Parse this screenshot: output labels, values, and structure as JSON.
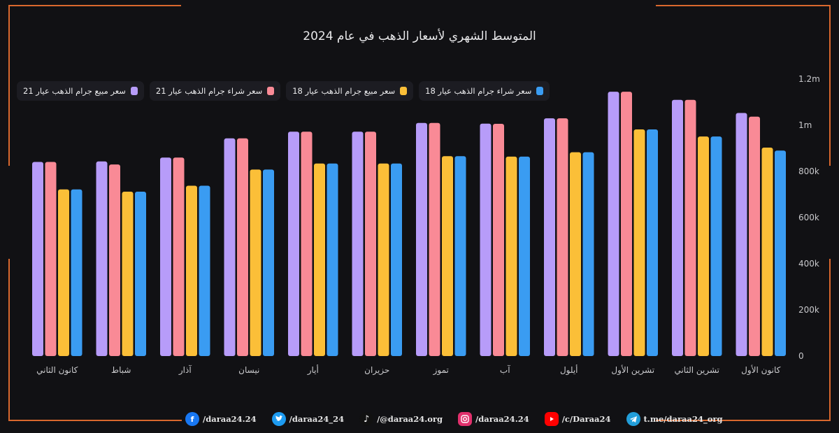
{
  "colors": {
    "series": [
      "#b79cf9",
      "#f98a96",
      "#fbbf38",
      "#3a9cf2"
    ],
    "frame": "#d9682e",
    "background": "#111114",
    "facebook": "#1877f2",
    "twitter": "#1d9bf0",
    "tiktok": "#111111",
    "instagram": "#e1306c",
    "youtube": "#ff0000",
    "telegram": "#229ed9"
  },
  "chart_data": {
    "type": "bar",
    "title": "المتوسط الشهري لأسعار الذهب في عام  2024",
    "categories": [
      "كانون الثاني",
      "شباط",
      "آذار",
      "نيسان",
      "أيار",
      "حزيران",
      "تموز",
      "آب",
      "أيلول",
      "تشرين الأول",
      "تشرين الثاني",
      "كانون الأول"
    ],
    "series": [
      {
        "name": "سعر مبيع جرام الذهب عيار 21",
        "values": [
          841000,
          843000,
          860000,
          943000,
          972000,
          972000,
          1010000,
          1007000,
          1030000,
          1145000,
          1110000,
          1053000
        ]
      },
      {
        "name": "سعر شراء جرام الذهب عيار 21",
        "values": [
          841000,
          830000,
          860000,
          943000,
          972000,
          972000,
          1010000,
          1006000,
          1030000,
          1145000,
          1110000,
          1037000
        ]
      },
      {
        "name": "سعر مبيع جرام الذهب عيار 18",
        "values": [
          722000,
          712000,
          738000,
          808000,
          834000,
          834000,
          866000,
          864000,
          883000,
          982000,
          951000,
          903000
        ]
      },
      {
        "name": "سعر شراء جرام الذهب عيار 18",
        "values": [
          722000,
          712000,
          738000,
          808000,
          834000,
          834000,
          866000,
          864000,
          883000,
          982000,
          951000,
          890000
        ]
      }
    ],
    "yticks": [
      "0",
      "200k",
      "400k",
      "600k",
      "800k",
      "1m",
      "1.2m"
    ],
    "ylim": [
      0,
      1200000
    ],
    "grid": false,
    "legend_position": "top-left"
  },
  "footer": {
    "facebook": "/daraa24.24",
    "twitter": "/daraa24_24",
    "tiktok": "/@daraa24.org",
    "instagram": "/daraa24.24",
    "youtube": "/c/Daraa24",
    "telegram": "t.me/daraa24_org"
  }
}
